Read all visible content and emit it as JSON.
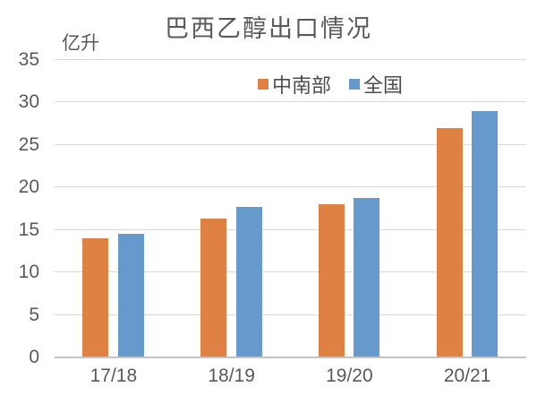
{
  "title": "巴西乙醇出口情况",
  "unit_label": "亿升",
  "colors": {
    "central_south": "#df8142",
    "national": "#669acd",
    "gridline": "#d9d9d9",
    "axis_baseline": "#c4c2c2",
    "text": "#595959",
    "background": "#ffffff"
  },
  "legend": {
    "items": [
      {
        "label": "中南部",
        "color": "#df8142"
      },
      {
        "label": "全国",
        "color": "#669acd"
      }
    ]
  },
  "chart_data": {
    "type": "bar",
    "title": "巴西乙醇出口情况",
    "xlabel": "",
    "ylabel": "亿升",
    "categories": [
      "17/18",
      "18/19",
      "19/20",
      "20/21"
    ],
    "series": [
      {
        "name": "中南部",
        "color": "#df8142",
        "values": [
          14,
          16.3,
          18,
          27
        ]
      },
      {
        "name": "全国",
        "color": "#669acd",
        "values": [
          14.5,
          17.7,
          18.8,
          29
        ]
      }
    ],
    "ylim": [
      0,
      35
    ],
    "ytick_step": 5,
    "yticks": [
      0,
      5,
      10,
      15,
      20,
      25,
      30,
      35
    ],
    "grid": true,
    "legend_position": "top-inside"
  }
}
